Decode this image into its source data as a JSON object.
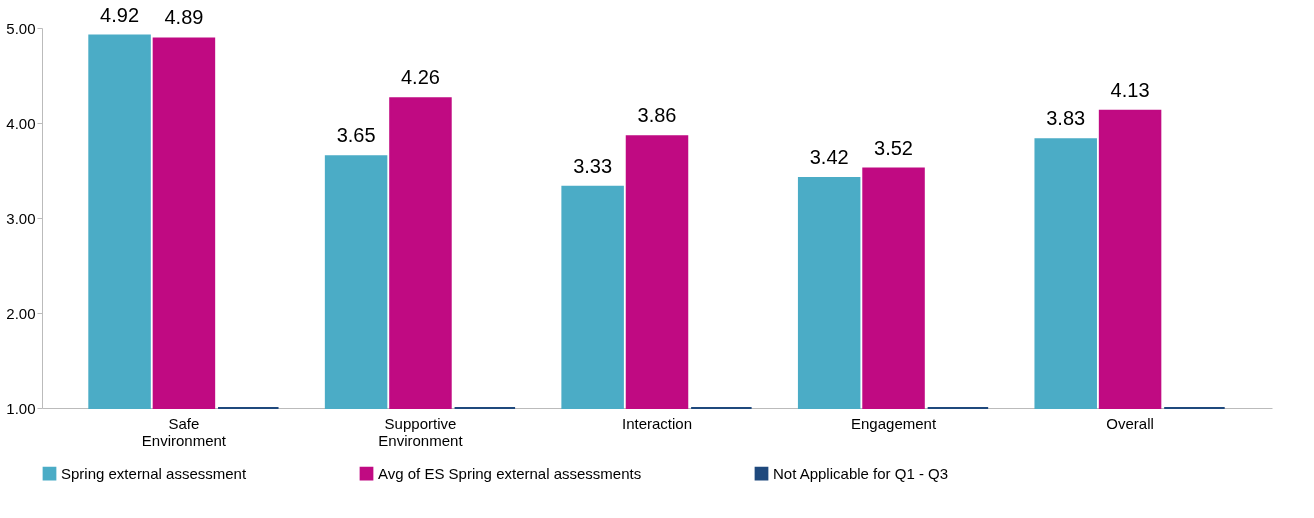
{
  "chart_data": {
    "type": "bar",
    "categories": [
      "Safe Environment",
      "Supportive Environment",
      "Interaction",
      "Engagement",
      "Overall"
    ],
    "series": [
      {
        "name": "Spring external assessment",
        "color": "#4bacc6",
        "values": [
          4.92,
          3.65,
          3.33,
          3.42,
          3.83
        ],
        "value_labels": [
          "4.92",
          "3.65",
          "3.33",
          "3.42",
          "3.83"
        ]
      },
      {
        "name": "Avg of ES Spring external assessments",
        "color": "#c00a82",
        "values": [
          4.89,
          4.26,
          3.86,
          3.52,
          4.13
        ],
        "value_labels": [
          "4.89",
          "4.26",
          "3.86",
          "3.52",
          "4.13"
        ]
      },
      {
        "name": "Not Applicable for Q1 - Q3",
        "color": "#1f497d",
        "values": [
          1.0,
          1.0,
          1.0,
          1.0,
          1.0
        ]
      }
    ],
    "ylim": [
      1,
      5
    ],
    "yticks": [
      {
        "value": 1,
        "label": "1.00"
      },
      {
        "value": 2,
        "label": "2.00"
      },
      {
        "value": 3,
        "label": "3.00"
      },
      {
        "value": 4,
        "label": "4.00"
      },
      {
        "value": 5,
        "label": "5.00"
      }
    ],
    "grid": false,
    "legend": "bottom"
  }
}
